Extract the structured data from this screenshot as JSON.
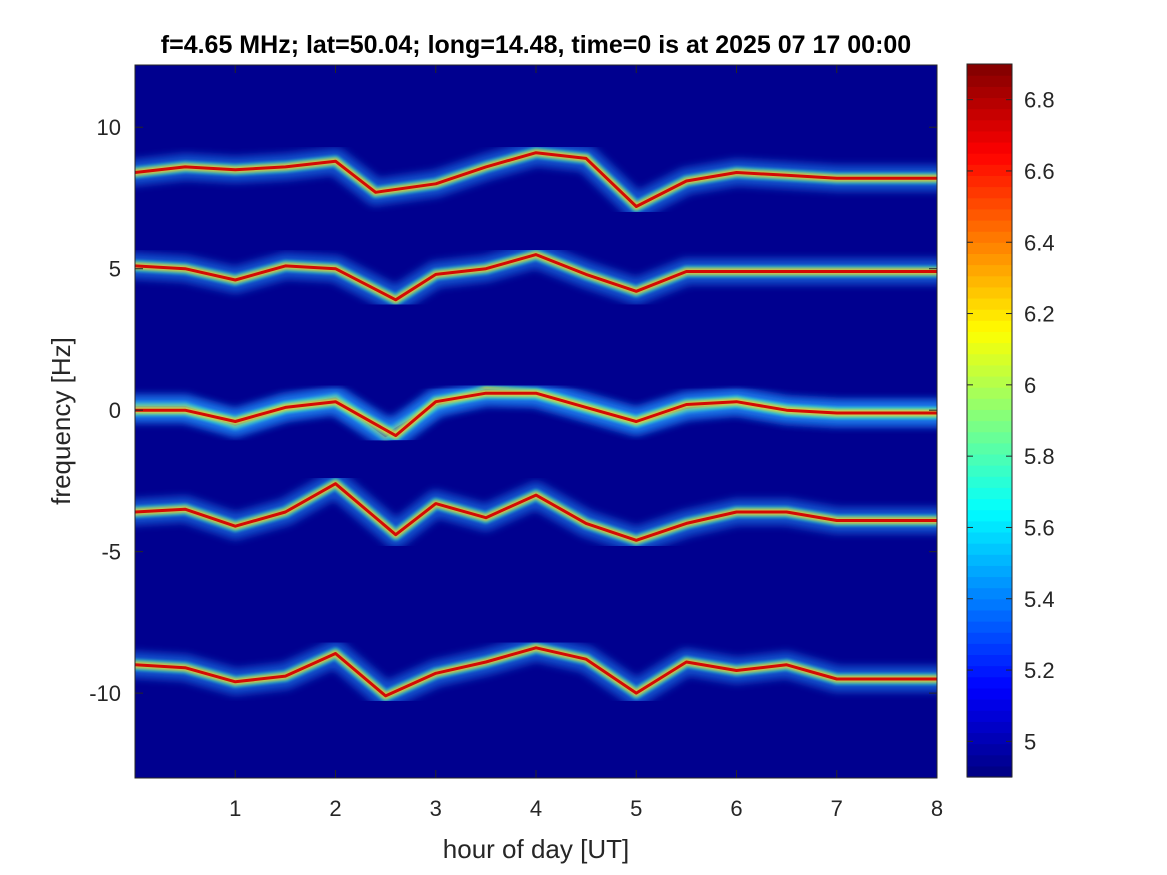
{
  "chart_data": {
    "type": "heatmap",
    "title": "f=4.65 MHz;  lat=50.04; long=14.48, time=0 is at 2025 07 17 00:00",
    "xlabel": "hour of day [UT]",
    "ylabel": "frequency [Hz]",
    "xlim": [
      0,
      8
    ],
    "ylim": [
      -13,
      12.2
    ],
    "x_ticks": [
      "1",
      "2",
      "3",
      "4",
      "5",
      "6",
      "7",
      "8"
    ],
    "y_ticks": [
      "10",
      "5",
      "0",
      "-5",
      "-10"
    ],
    "colormap": "jet",
    "clim": [
      4.9,
      6.9
    ],
    "colorbar_ticks": [
      "6.8",
      "6.6",
      "6.4",
      "6.2",
      "6",
      "5.8",
      "5.6",
      "5.4",
      "5.2",
      "5"
    ],
    "background_color": "#00008f",
    "series": [
      {
        "x": [
          0,
          0.5,
          1,
          1.5,
          2,
          2.4,
          3,
          3.5,
          4,
          4.5,
          5,
          5.5,
          6,
          6.5,
          7,
          8
        ],
        "y": [
          8.4,
          8.6,
          8.5,
          8.6,
          8.8,
          7.7,
          8.0,
          8.6,
          9.1,
          8.9,
          7.2,
          8.1,
          8.4,
          8.3,
          8.2,
          8.2
        ]
      },
      {
        "x": [
          0,
          0.5,
          1,
          1.5,
          2,
          2.6,
          3,
          3.5,
          4,
          4.5,
          5,
          5.5,
          6,
          6.5,
          7,
          8
        ],
        "y": [
          5.1,
          5.0,
          4.6,
          5.1,
          5.0,
          3.9,
          4.8,
          5.0,
          5.5,
          4.8,
          4.2,
          4.9,
          4.9,
          4.9,
          4.9,
          4.9
        ]
      },
      {
        "x": [
          0,
          0.5,
          1,
          1.5,
          2,
          2.5,
          3,
          3.5,
          4,
          4.5,
          5,
          5.5,
          6,
          6.5,
          7,
          8
        ],
        "y": [
          0.1,
          0.1,
          -0.5,
          0.1,
          0.4,
          -0.9,
          0.2,
          0.7,
          0.6,
          0.1,
          -0.4,
          0.1,
          0.3,
          0.0,
          -0.1,
          -0.1
        ]
      },
      {
        "x": [
          0,
          0.5,
          1,
          1.5,
          2,
          2.6,
          3,
          3.5,
          4,
          4.5,
          5,
          5.5,
          6,
          6.5,
          7,
          8
        ],
        "y": [
          -3.6,
          -3.5,
          -4.1,
          -3.6,
          -2.6,
          -4.4,
          -3.3,
          -3.8,
          -3.0,
          -4.0,
          -4.6,
          -4.0,
          -3.6,
          -3.6,
          -3.9,
          -3.9
        ]
      },
      {
        "x": [
          0,
          0.5,
          1,
          1.5,
          2,
          2.5,
          3,
          3.5,
          4,
          4.5,
          5,
          5.5,
          6,
          6.5,
          7,
          8
        ],
        "y": [
          -9.0,
          -9.1,
          -9.6,
          -9.4,
          -8.6,
          -10.1,
          -9.3,
          -8.9,
          -8.4,
          -8.8,
          -10.0,
          -8.9,
          -9.2,
          -9.0,
          -9.5,
          -9.5
        ]
      },
      {
        "x": [
          0,
          0.5,
          1,
          1.5,
          2,
          2.6,
          3,
          3.5,
          4,
          4.5,
          5,
          5.5,
          6,
          6.5,
          7,
          8
        ],
        "y": [
          0.0,
          0.0,
          -0.4,
          0.1,
          0.3,
          -0.9,
          0.3,
          0.6,
          0.6,
          0.1,
          -0.4,
          0.2,
          0.3,
          0.0,
          -0.1,
          -0.1
        ]
      }
    ]
  }
}
